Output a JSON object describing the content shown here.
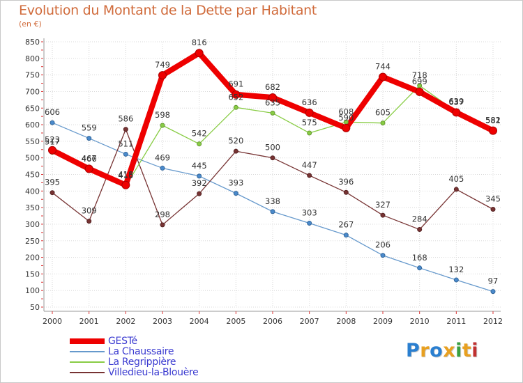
{
  "title": "Evolution du Montant de la Dette par Habitant",
  "unit": "(en €)",
  "logo": {
    "text": "Proxiti",
    "colors": [
      "#2a7fd0",
      "#e8a020",
      "#2a7fd0",
      "#e8a020",
      "#3aa040",
      "#e8a020",
      "#c03030"
    ]
  },
  "chart_data": {
    "type": "line",
    "title": "Evolution du Montant de la Dette par Habitant",
    "ylabel": "(en €)",
    "x": [
      "2000",
      "2001",
      "2002",
      "2003",
      "2004",
      "2005",
      "2006",
      "2007",
      "2008",
      "2009",
      "2010",
      "2011",
      "2012"
    ],
    "ylim": [
      50,
      850
    ],
    "yticks": [
      50,
      100,
      150,
      200,
      250,
      300,
      350,
      400,
      450,
      500,
      550,
      600,
      650,
      700,
      750,
      800,
      850
    ],
    "grid": true,
    "legend": "bottom-left",
    "series": [
      {
        "name": "GESTé",
        "color": "#ee0000",
        "values": [
          523,
          467,
          418,
          749,
          816,
          691,
          682,
          636,
          590,
          744,
          699,
          637,
          582
        ]
      },
      {
        "name": "La Chaussaire",
        "color": "#6699cc",
        "values": [
          606,
          559,
          511,
          469,
          445,
          393,
          338,
          303,
          267,
          206,
          168,
          132,
          97
        ]
      },
      {
        "name": "La Regrippière",
        "color": "#88cc44",
        "values": [
          517,
          466,
          415,
          598,
          542,
          652,
          635,
          575,
          608,
          605,
          718,
          639,
          581
        ]
      },
      {
        "name": "Villedieu-la-Blouère",
        "color": "#773333",
        "values": [
          395,
          309,
          586,
          298,
          392,
          520,
          500,
          447,
          396,
          327,
          284,
          405,
          345
        ]
      }
    ]
  }
}
